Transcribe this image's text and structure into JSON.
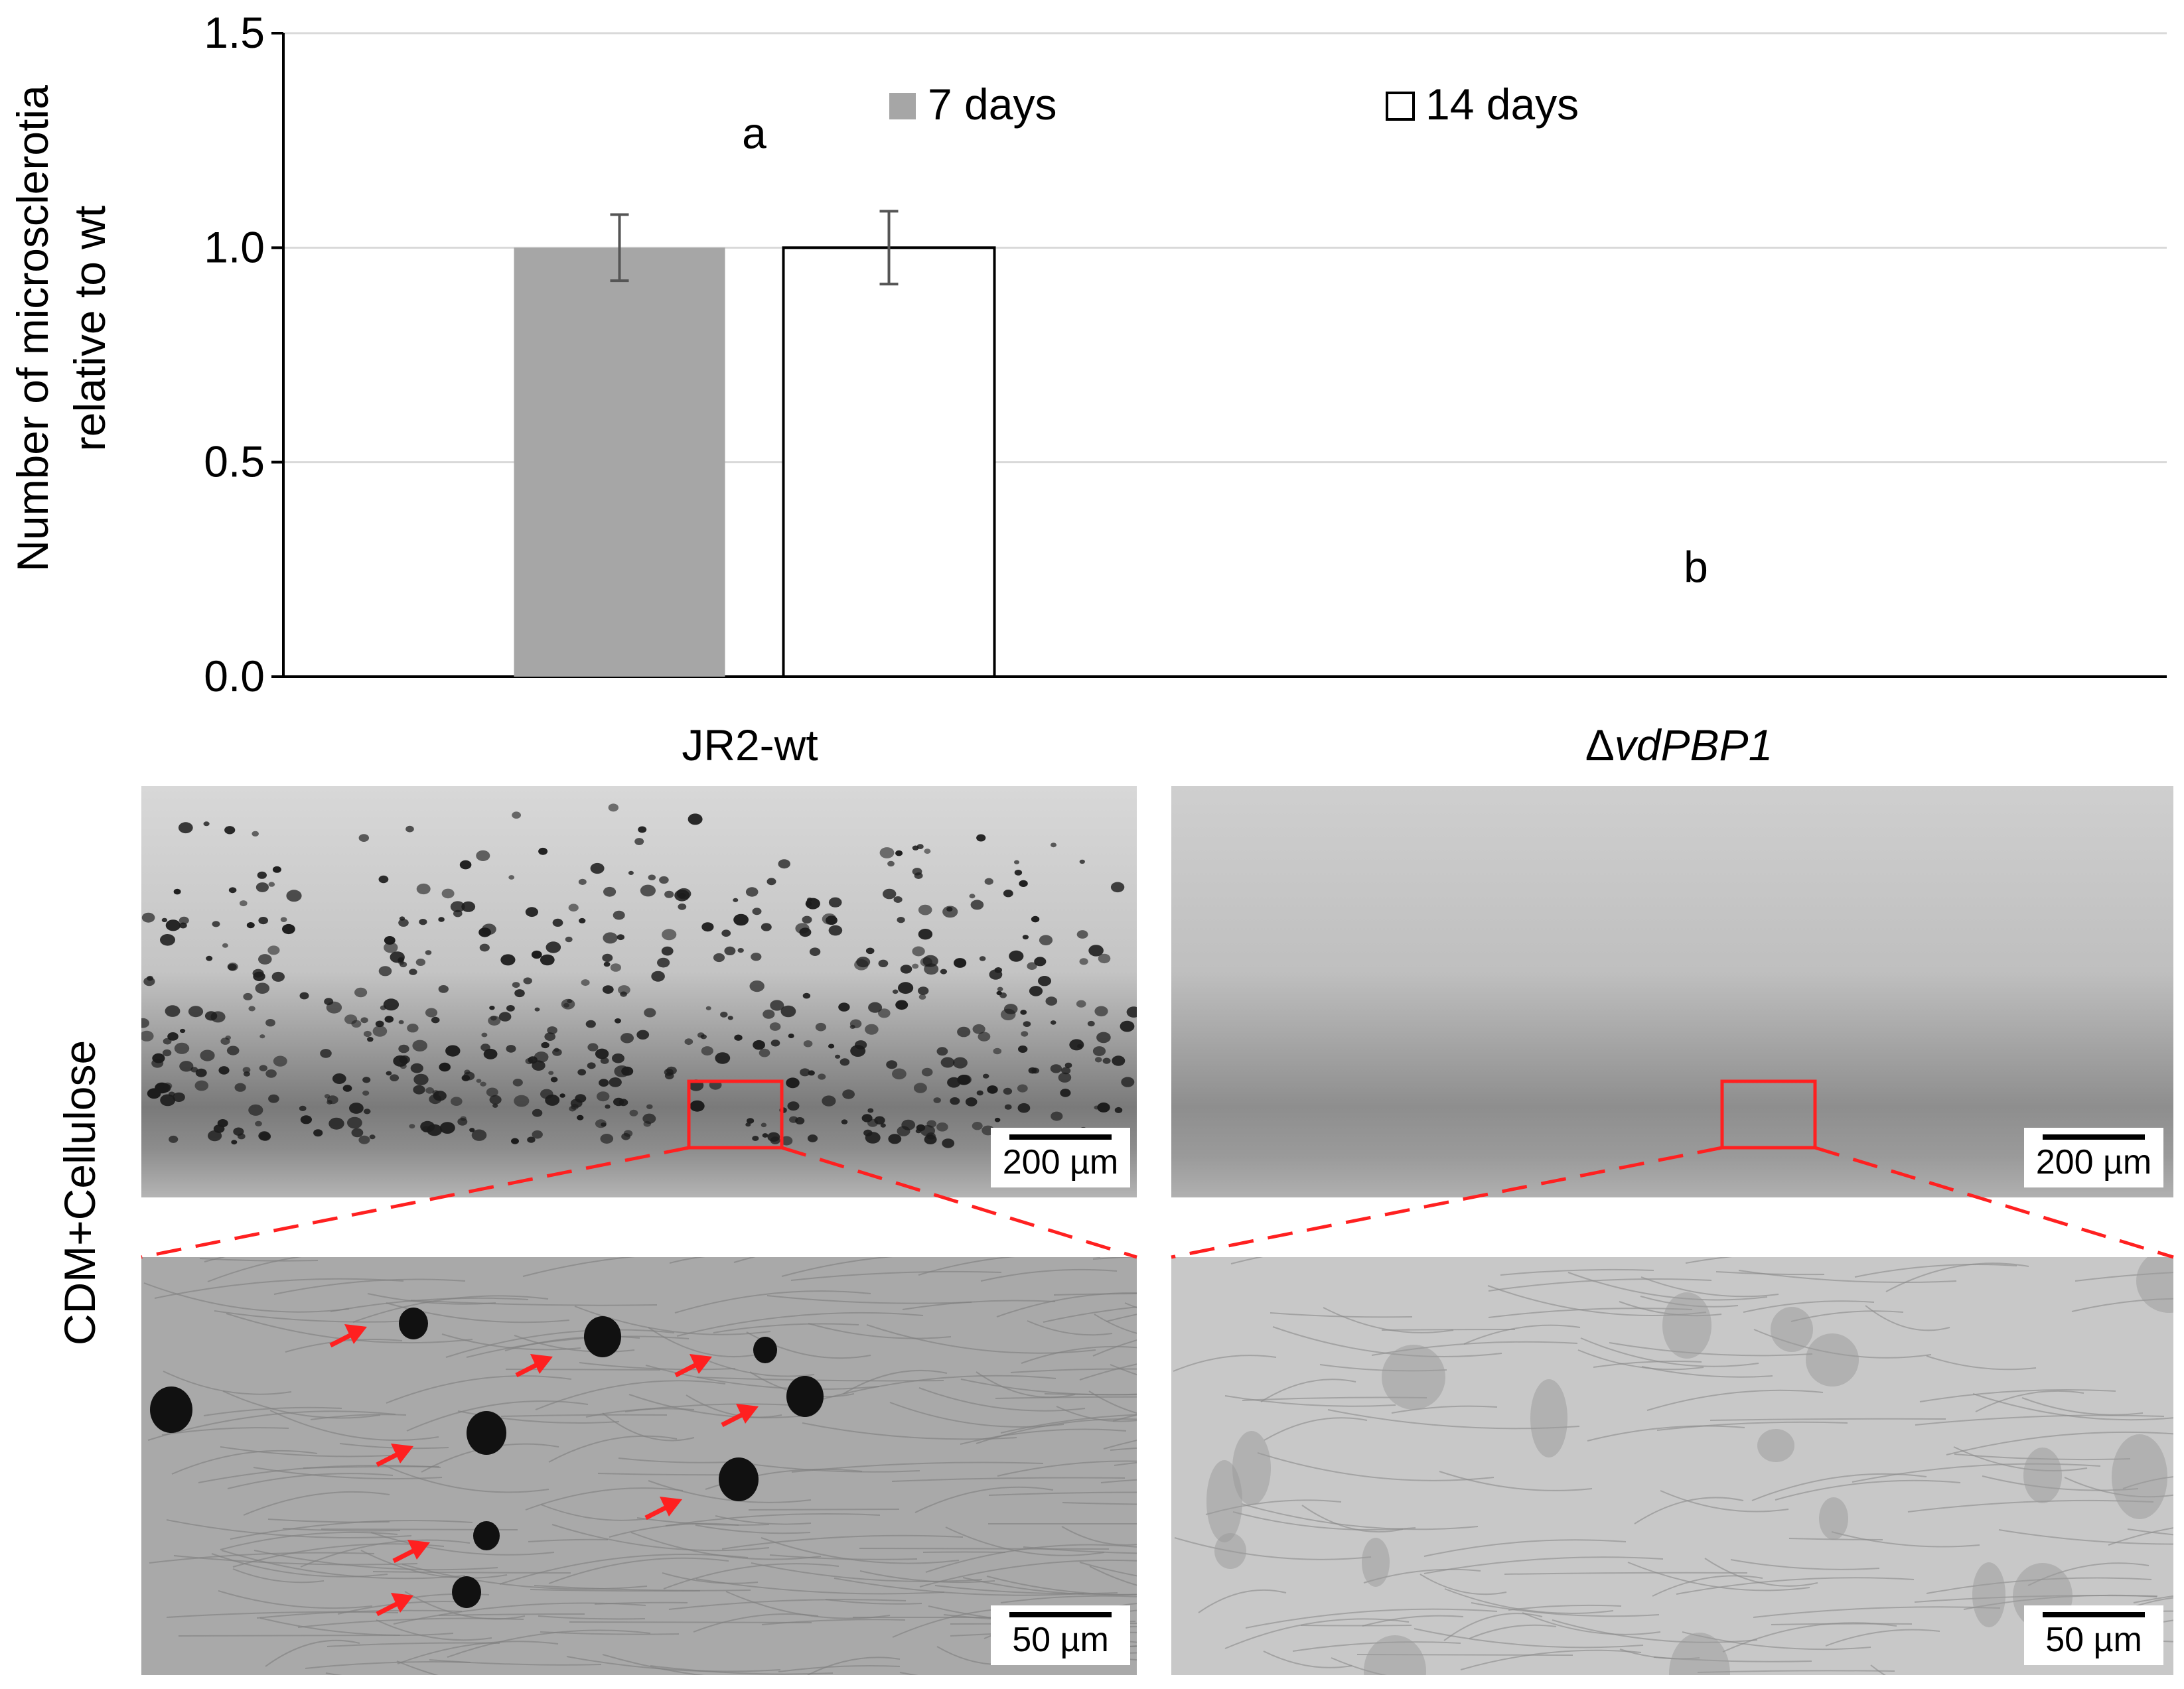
{
  "chart_data": {
    "type": "bar",
    "ylabel_line1": "Number of microsclerotia",
    "ylabel_line2": "relative to wt",
    "ylim": [
      0,
      1.5
    ],
    "yticks": [
      "0.0",
      "0.5",
      "1.0",
      "1.5"
    ],
    "categories": [
      "JR2-wt",
      "ΔvdPBP1"
    ],
    "series": [
      {
        "name": "7 days",
        "color": "#a6a6a6",
        "values": [
          1.0,
          0.0
        ],
        "errors": [
          0.077,
          0
        ]
      },
      {
        "name": "14 days",
        "color": "#ffffff",
        "values": [
          1.0,
          0.0
        ],
        "errors": [
          0.085,
          0
        ]
      }
    ],
    "significance": [
      "a",
      "b"
    ],
    "grid": true,
    "legend_position": "top"
  },
  "groups": {
    "wt_label": "JR2-wt",
    "mutant_prefix": "Δ",
    "mutant_name": "vdPBP1"
  },
  "condition_label": "CDM+Cellulose",
  "scale_bars": {
    "overview": "200 µm",
    "zoom": "50 µm"
  },
  "colors": {
    "marker": "#ff2020",
    "gridline": "#d9d9d9",
    "axis": "#000000"
  }
}
